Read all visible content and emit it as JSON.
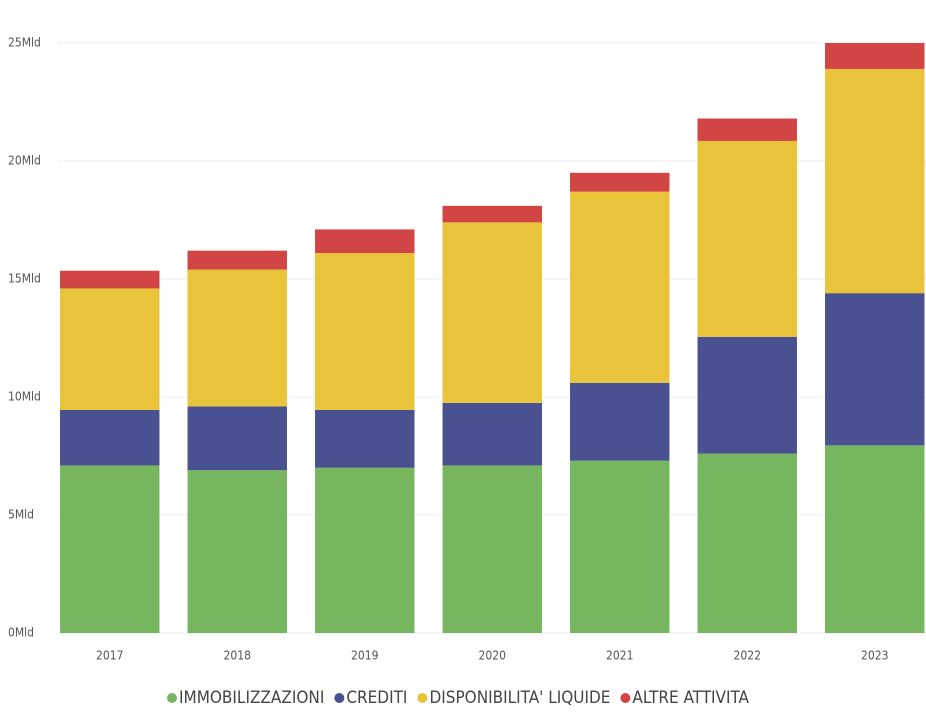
{
  "chart_data": {
    "type": "stacked_bar",
    "categories": [
      "2017",
      "2018",
      "2019",
      "2020",
      "2021",
      "2022",
      "2023"
    ],
    "series": [
      {
        "name": "IMMOBILIZZAZIONI",
        "color": "#76b65f",
        "values": [
          7.1,
          6.9,
          7.0,
          7.1,
          7.3,
          7.6,
          7.95
        ]
      },
      {
        "name": "CREDITI",
        "color": "#4a5190",
        "values": [
          2.35,
          2.7,
          2.45,
          2.65,
          3.3,
          4.95,
          6.45
        ]
      },
      {
        "name": "DISPONIBILITA' LIQUIDE",
        "color": "#e9c43a",
        "values": [
          5.15,
          5.8,
          6.65,
          7.65,
          8.1,
          8.3,
          9.5
        ]
      },
      {
        "name": "ALTRE ATTIVITA",
        "color": "#d24545",
        "values": [
          0.75,
          0.8,
          1.0,
          0.7,
          0.8,
          0.95,
          1.1
        ]
      }
    ],
    "ylim": [
      0,
      25
    ],
    "yticks": [
      {
        "value": 0,
        "label": "0Mld"
      },
      {
        "value": 5,
        "label": "5Mld"
      },
      {
        "value": 10,
        "label": "10Mld"
      },
      {
        "value": 15,
        "label": "15Mld"
      },
      {
        "value": 20,
        "label": "20Mld"
      },
      {
        "value": 25,
        "label": "25Mld"
      }
    ],
    "grid": true,
    "legend": "bottom"
  }
}
